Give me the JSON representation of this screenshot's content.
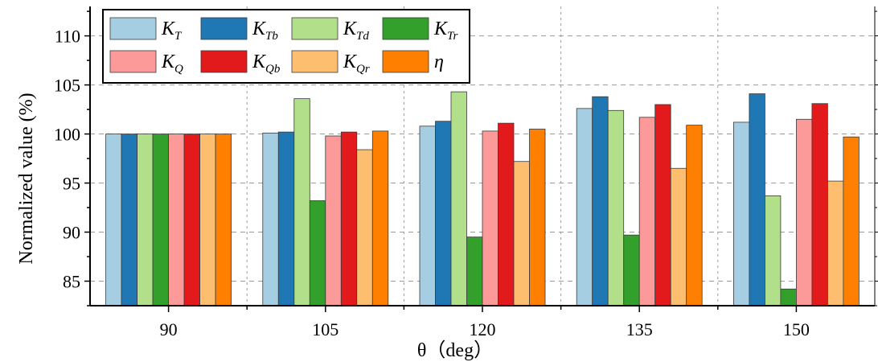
{
  "chart_data": {
    "type": "bar",
    "categories": [
      "90",
      "105",
      "120",
      "135",
      "150"
    ],
    "xlabel": "θ（deg）",
    "ylabel": "Normalized value (%)",
    "ylim": [
      82.5,
      113
    ],
    "yticks": [
      85,
      90,
      95,
      100,
      105,
      110
    ],
    "grid": true,
    "legend_position": "top-left",
    "series": [
      {
        "name": "K",
        "sub": "T",
        "color": "#a6cee3",
        "values": [
          100,
          100.1,
          100.8,
          102.6,
          101.2
        ]
      },
      {
        "name": "K",
        "sub": "Tb",
        "color": "#1f78b4",
        "values": [
          100,
          100.2,
          101.3,
          103.8,
          104.1
        ]
      },
      {
        "name": "K",
        "sub": "Td",
        "color": "#b2df8a",
        "values": [
          100,
          103.6,
          104.3,
          102.4,
          93.7
        ]
      },
      {
        "name": "K",
        "sub": "Tr",
        "color": "#33a02c",
        "values": [
          100,
          93.2,
          89.5,
          89.7,
          84.2
        ]
      },
      {
        "name": "K",
        "sub": "Q",
        "color": "#fb9a99",
        "values": [
          100,
          99.8,
          100.3,
          101.7,
          101.5
        ]
      },
      {
        "name": "K",
        "sub": "Qb",
        "color": "#e31a1c",
        "values": [
          100,
          100.2,
          101.1,
          103.0,
          103.1
        ]
      },
      {
        "name": "K",
        "sub": "Qr",
        "color": "#fdbf6f",
        "values": [
          100,
          98.4,
          97.2,
          96.5,
          95.2
        ]
      },
      {
        "name": "η",
        "sub": "",
        "color": "#ff7f00",
        "values": [
          100,
          100.3,
          100.5,
          100.9,
          99.7
        ]
      }
    ]
  }
}
